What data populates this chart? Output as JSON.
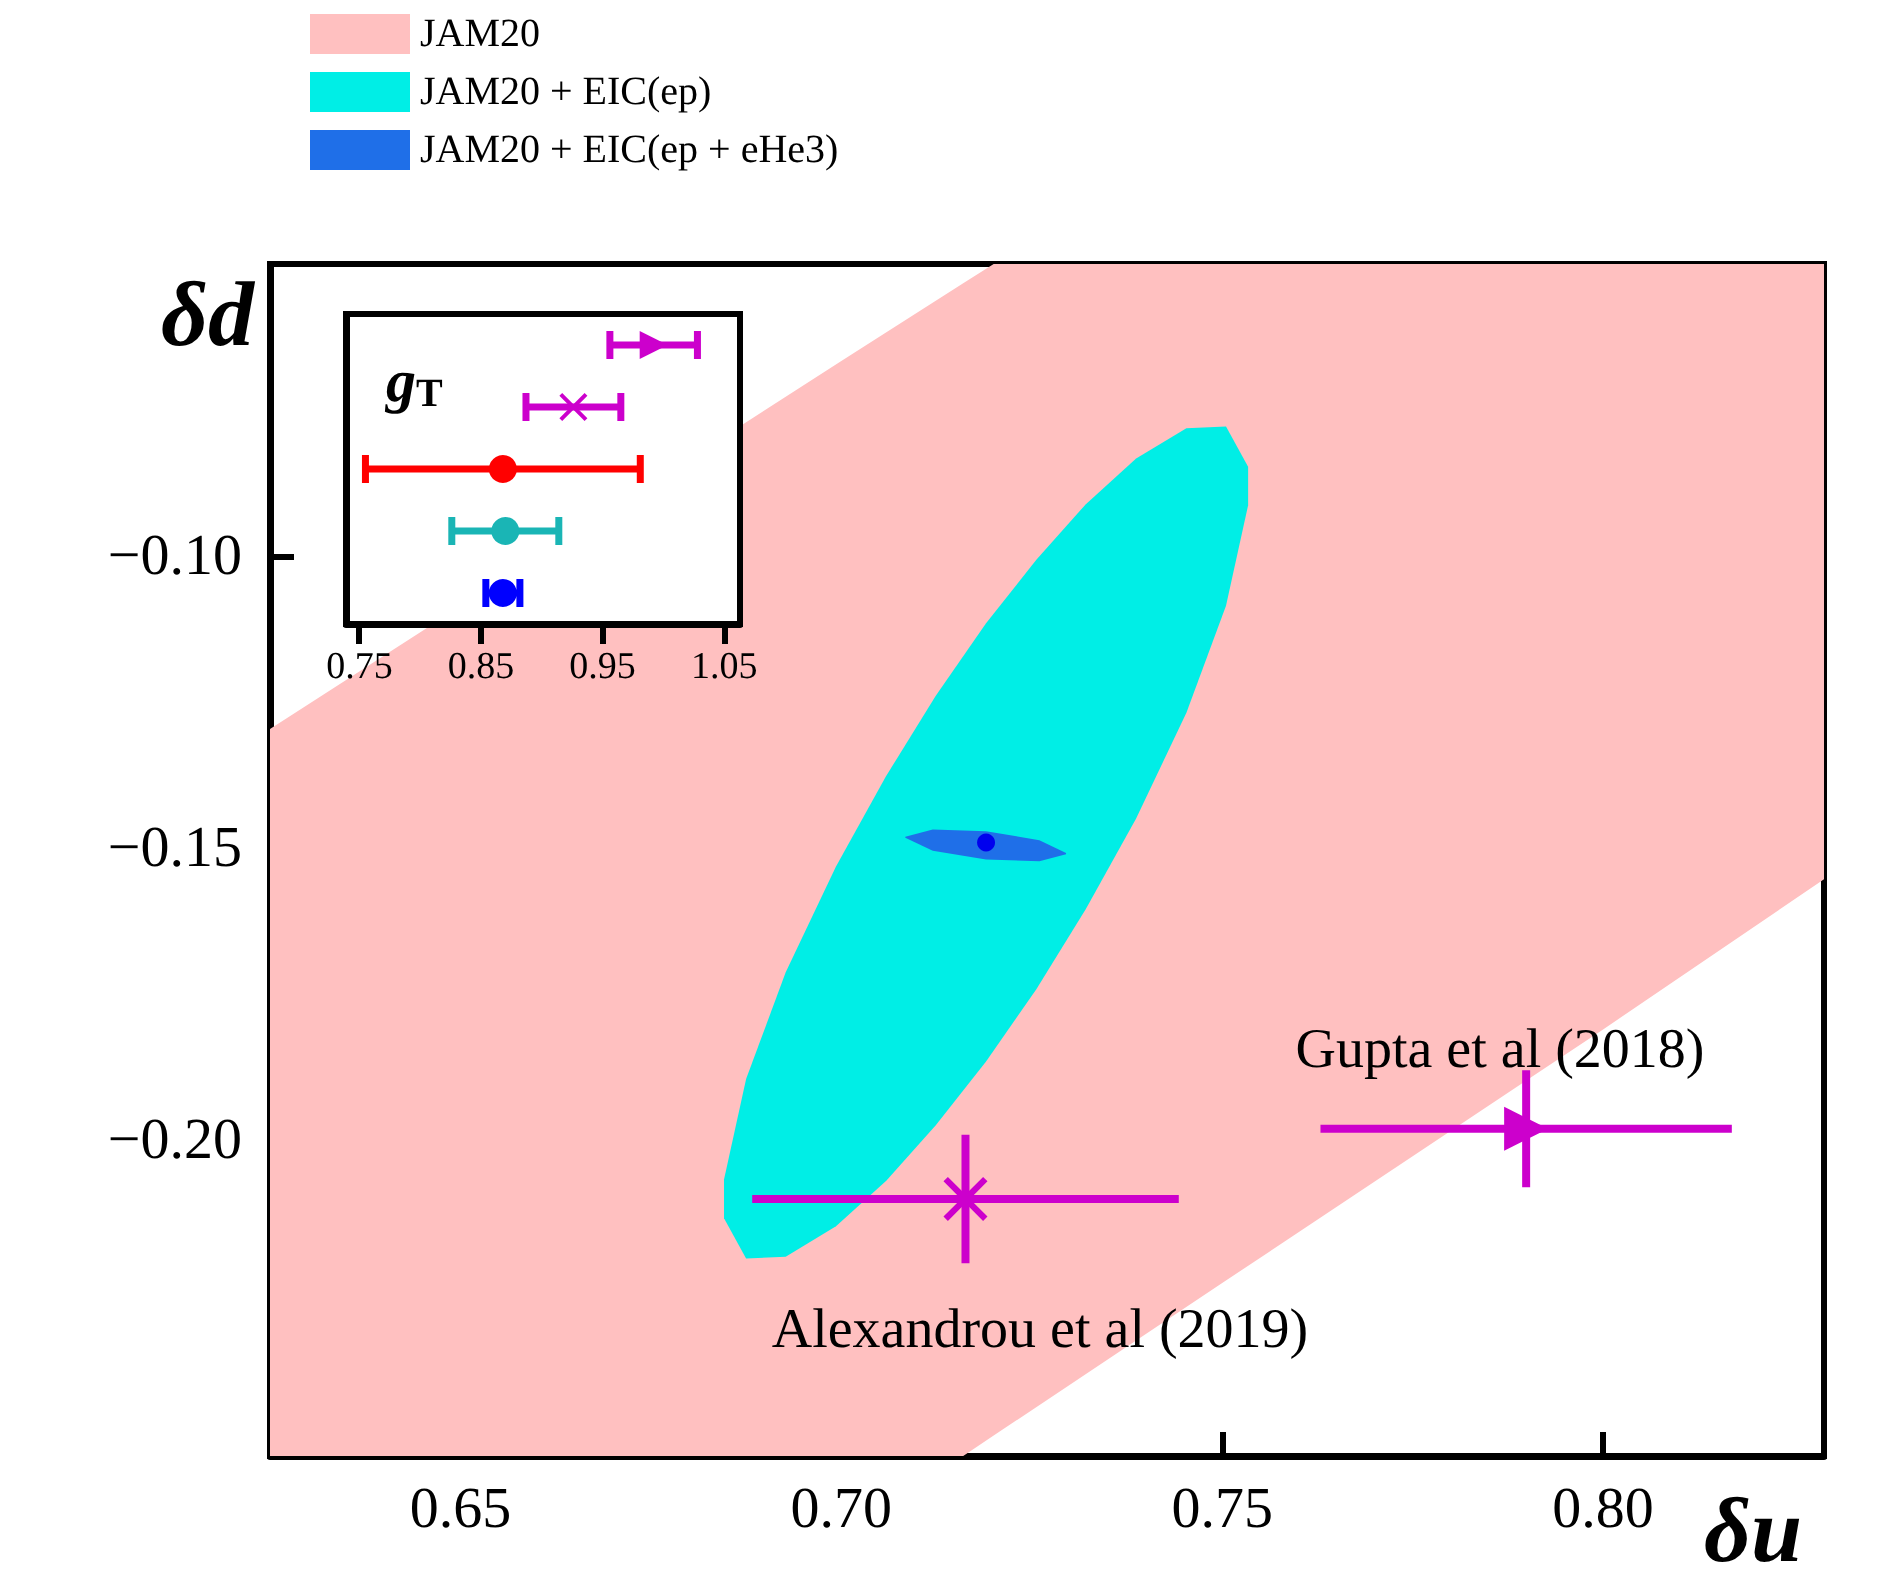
{
  "chart_data": [
    {
      "type": "scatter",
      "xlabel": "δu",
      "ylabel": "δd",
      "legend": "top left",
      "xlim": [
        0.625,
        0.829
      ],
      "ylim": [
        -0.254,
        -0.05
      ],
      "xticks": [
        {
          "value": 0.65,
          "label": "0.65"
        },
        {
          "value": 0.7,
          "label": "0.70"
        },
        {
          "value": 0.75,
          "label": "0.75"
        },
        {
          "value": 0.8,
          "label": "0.80"
        }
      ],
      "yticks": [
        {
          "value": -0.1,
          "label": "−0.10"
        },
        {
          "value": -0.15,
          "label": "−0.15"
        },
        {
          "value": -0.2,
          "label": "−0.20"
        }
      ],
      "annotations": [
        "Gupta et al (2018)",
        "Alexandrou et al (2019)"
      ],
      "series": [
        {
          "name": "JAM20",
          "type": "area",
          "color": "#ffc0c0",
          "x": [
            0.625,
            0.7,
            0.716,
            0.72,
            0.75,
            0.775,
            0.8,
            0.829
          ],
          "values": [
            null,
            null,
            null,
            null,
            null,
            null,
            null,
            null
          ],
          "lower": [
            -0.254,
            -0.254,
            -0.254,
            -0.2505,
            -0.2244,
            -0.2027,
            -0.181,
            -0.1553
          ],
          "upper": [
            -0.1296,
            -0.0666,
            -0.0533,
            -0.05,
            -0.05,
            -0.05,
            -0.05,
            -0.05
          ]
        },
        {
          "name": "JAM20 + EIC(ep)",
          "type": "area",
          "color": "#00eee6",
          "x": [
            0.6846,
            0.6875,
            0.6927,
            0.6993,
            0.7059,
            0.7124,
            0.719,
            0.7256,
            0.7321,
            0.7387,
            0.7453,
            0.7505,
            0.7534
          ],
          "values": [
            null,
            null,
            null,
            null,
            null,
            null,
            null,
            null,
            null,
            null,
            null,
            null,
            null
          ],
          "lower": [
            -0.2133,
            -0.2202,
            -0.2199,
            -0.2147,
            -0.2069,
            -0.1974,
            -0.1865,
            -0.1741,
            -0.1604,
            -0.1449,
            -0.1268,
            -0.1085,
            -0.0913
          ],
          "upper": [
            -0.2067,
            -0.1895,
            -0.1712,
            -0.1531,
            -0.1376,
            -0.1239,
            -0.1115,
            -0.1006,
            -0.0911,
            -0.0833,
            -0.0781,
            -0.0778,
            -0.0847
          ]
        },
        {
          "name": "JAM20 + EIC(ep + eHe3)",
          "type": "area",
          "color": "#1f6fe8",
          "x": [
            0.7084,
            0.712,
            0.719,
            0.726,
            0.7295
          ],
          "values": [
            null,
            null,
            null,
            null,
            null
          ],
          "lower": [
            -0.1482,
            -0.1504,
            -0.1519,
            -0.1522,
            -0.151
          ],
          "upper": [
            -0.148,
            -0.1468,
            -0.1471,
            -0.1486,
            -0.1508
          ]
        },
        {
          "color": "#0000ee",
          "marker": "circle",
          "x": [
            0.719
          ],
          "values": [
            -0.149
          ]
        },
        {
          "color": "#cc00cc",
          "marker": "cross",
          "x": [
            0.7163
          ],
          "values": [
            -0.21
          ],
          "errors": [
            0.011
          ],
          "xerrors": [
            0.028
          ]
        },
        {
          "color": "#cc00cc",
          "marker": "triangle",
          "x": [
            0.7899
          ],
          "values": [
            -0.198
          ],
          "errors": [
            0.01
          ],
          "xerrors": [
            0.027
          ]
        }
      ]
    },
    {
      "type": "scatter",
      "orientation": "horizontal",
      "title": "g$_{T}$",
      "tick_labels": "x",
      "categories": [
        null,
        null,
        null,
        null,
        null
      ],
      "xlim": [
        0.739,
        1.063
      ],
      "xticks": [
        0.75,
        0.85,
        0.95,
        1.05
      ],
      "series": [
        {
          "color": "#cc00cc",
          "marker": "triangle",
          "values": [
            0.992,
            null,
            null,
            null,
            null
          ],
          "errors": [
            0.036,
            null,
            null,
            null,
            null
          ]
        },
        {
          "color": "#cc00cc",
          "marker": "cross",
          "values": [
            null,
            0.926,
            null,
            null,
            null
          ],
          "errors": [
            null,
            0.039,
            null,
            null,
            null
          ]
        },
        {
          "color": "#ff0000",
          "marker": "circle",
          "values": [
            null,
            null,
            0.868,
            null,
            null
          ],
          "errors": [
            null,
            null,
            0.113,
            null,
            null
          ]
        },
        {
          "color": "#1ab5b5",
          "marker": "circle",
          "values": [
            null,
            null,
            null,
            0.87,
            null
          ],
          "errors": [
            null,
            null,
            null,
            0.044,
            null
          ]
        },
        {
          "color": "#0000ff",
          "marker": "circle",
          "values": [
            null,
            null,
            null,
            null,
            0.868
          ],
          "errors": [
            null,
            null,
            null,
            null,
            0.014
          ]
        }
      ]
    }
  ]
}
